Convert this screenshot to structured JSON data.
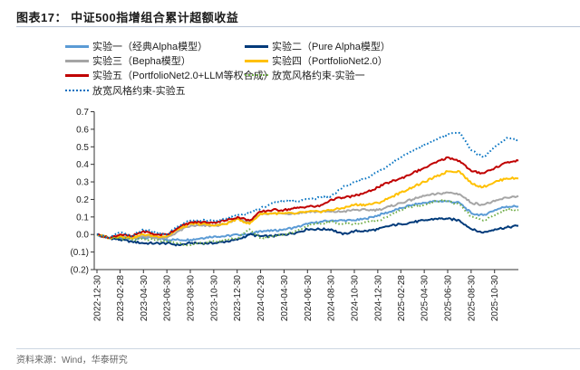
{
  "title": "图表17：  中证500指增组合累计超额收益",
  "source": "资料来源：Wind，华泰研究",
  "chart_data": {
    "type": "line",
    "title": "图表17：  中证500指增组合累计超额收益",
    "xlabel": "",
    "ylabel": "",
    "ylim": [
      -0.2,
      0.7
    ],
    "yticks": [
      0.7,
      0.6,
      0.5,
      0.4,
      0.3,
      0.2,
      0.1,
      0.0,
      -0.1,
      -0.2
    ],
    "ytick_labels": [
      "0.7",
      "0.6",
      "0.5",
      "0.4",
      "0.3",
      "0.2",
      "0.1",
      "0.0",
      "(0.1)",
      "(0.2)"
    ],
    "xtick_labels": [
      "2022-12-30",
      "2023-02-28",
      "2023-04-30",
      "2023-06-30",
      "2023-08-30",
      "2023-10-30",
      "2023-12-30",
      "2024-02-29",
      "2024-04-30",
      "2024-06-30",
      "2024-08-30",
      "2024-10-30",
      "2024-12-30",
      "2025-02-28",
      "2025-04-30",
      "2025-06-30",
      "2025-08-30",
      "2025-10-30"
    ],
    "grid": false,
    "legend_placement": "top",
    "x": [
      "2022-12-30",
      "2023-01-31",
      "2023-02-28",
      "2023-03-31",
      "2023-04-30",
      "2023-05-31",
      "2023-06-30",
      "2023-07-31",
      "2023-08-31",
      "2023-09-30",
      "2023-10-31",
      "2023-11-30",
      "2023-12-31",
      "2024-01-31",
      "2024-02-29",
      "2024-03-31",
      "2024-04-30",
      "2024-05-31",
      "2024-06-30",
      "2024-07-31",
      "2024-08-31",
      "2024-09-30",
      "2024-10-31",
      "2024-11-30",
      "2024-12-31",
      "2025-01-31",
      "2025-02-28",
      "2025-03-31",
      "2025-04-30",
      "2025-05-31",
      "2025-06-30",
      "2025-07-31",
      "2025-08-31",
      "2025-09-30",
      "2025-10-31",
      "2025-11-30",
      "2025-12-31"
    ],
    "series": [
      {
        "name": "实验一（经典Alpha模型）",
        "color": "#5B9BD5",
        "style": "solid",
        "values": [
          0,
          -0.02,
          -0.02,
          -0.02,
          -0.02,
          -0.02,
          -0.03,
          -0.03,
          -0.03,
          -0.02,
          -0.01,
          -0.01,
          0.0,
          0.0,
          0.02,
          0.02,
          0.03,
          0.04,
          0.06,
          0.07,
          0.08,
          0.08,
          0.08,
          0.09,
          0.11,
          0.13,
          0.15,
          0.17,
          0.18,
          0.19,
          0.19,
          0.18,
          0.12,
          0.11,
          0.14,
          0.16,
          0.16
        ]
      },
      {
        "name": "实验二（Pure Alpha模型）",
        "color": "#003A7A",
        "style": "solid",
        "values": [
          0,
          -0.02,
          -0.03,
          -0.04,
          -0.05,
          -0.05,
          -0.05,
          -0.06,
          -0.05,
          -0.05,
          -0.05,
          -0.04,
          -0.03,
          0.0,
          -0.01,
          -0.01,
          0.0,
          0.01,
          0.03,
          0.03,
          0.03,
          0.0,
          0.02,
          0.02,
          0.03,
          0.05,
          0.06,
          0.07,
          0.08,
          0.09,
          0.09,
          0.08,
          0.03,
          0.01,
          0.03,
          0.04,
          0.05
        ]
      },
      {
        "name": "实验三（Bepha模型）",
        "color": "#A5A5A5",
        "style": "solid",
        "values": [
          0,
          -0.02,
          -0.01,
          -0.02,
          -0.01,
          -0.02,
          -0.02,
          0.02,
          0.05,
          0.05,
          0.05,
          0.06,
          0.09,
          0.07,
          0.12,
          0.12,
          0.12,
          0.12,
          0.13,
          0.13,
          0.13,
          0.13,
          0.14,
          0.14,
          0.14,
          0.16,
          0.18,
          0.2,
          0.22,
          0.23,
          0.24,
          0.23,
          0.18,
          0.17,
          0.19,
          0.21,
          0.22
        ]
      },
      {
        "name": "实验四（PortfolioNet2.0）",
        "color": "#FFC000",
        "style": "solid",
        "values": [
          0,
          -0.02,
          -0.01,
          -0.02,
          0.0,
          -0.01,
          -0.01,
          0.03,
          0.06,
          0.06,
          0.05,
          0.06,
          0.09,
          0.06,
          0.12,
          0.12,
          0.12,
          0.12,
          0.13,
          0.13,
          0.14,
          0.15,
          0.17,
          0.17,
          0.18,
          0.21,
          0.24,
          0.27,
          0.3,
          0.33,
          0.36,
          0.36,
          0.29,
          0.27,
          0.3,
          0.32,
          0.32
        ]
      },
      {
        "name": "实验五（PortfolioNet2.0+LLM等权合成）",
        "color": "#C00000",
        "style": "solid",
        "values": [
          0,
          -0.02,
          0,
          -0.01,
          0.02,
          0,
          0,
          0.04,
          0.07,
          0.07,
          0.07,
          0.08,
          0.1,
          0.08,
          0.13,
          0.14,
          0.14,
          0.15,
          0.16,
          0.16,
          0.2,
          0.21,
          0.22,
          0.24,
          0.27,
          0.3,
          0.32,
          0.35,
          0.38,
          0.41,
          0.44,
          0.42,
          0.36,
          0.35,
          0.38,
          0.41,
          0.42
        ]
      },
      {
        "name": "放宽风格约束-实验一",
        "color": "#70AD47",
        "style": "dotted",
        "values": [
          0,
          -0.02,
          -0.02,
          -0.03,
          -0.03,
          -0.03,
          -0.04,
          -0.05,
          -0.06,
          -0.05,
          -0.04,
          -0.03,
          -0.02,
          0.03,
          -0.02,
          -0.01,
          0.0,
          0.02,
          0.05,
          0.06,
          0.07,
          0.06,
          0.06,
          0.07,
          0.08,
          0.11,
          0.14,
          0.16,
          0.17,
          0.19,
          0.19,
          0.17,
          0.1,
          0.08,
          0.11,
          0.14,
          0.14
        ]
      },
      {
        "name": "放宽风格约束-实验五",
        "color": "#0070C0",
        "style": "dotted",
        "values": [
          0,
          -0.02,
          0.01,
          -0.01,
          0.03,
          0.01,
          0,
          0.05,
          0.08,
          0.08,
          0.08,
          0.09,
          0.11,
          0.12,
          0.15,
          0.18,
          0.19,
          0.19,
          0.2,
          0.21,
          0.22,
          0.27,
          0.3,
          0.32,
          0.36,
          0.4,
          0.44,
          0.48,
          0.51,
          0.54,
          0.57,
          0.58,
          0.48,
          0.44,
          0.5,
          0.55,
          0.54
        ]
      }
    ]
  }
}
